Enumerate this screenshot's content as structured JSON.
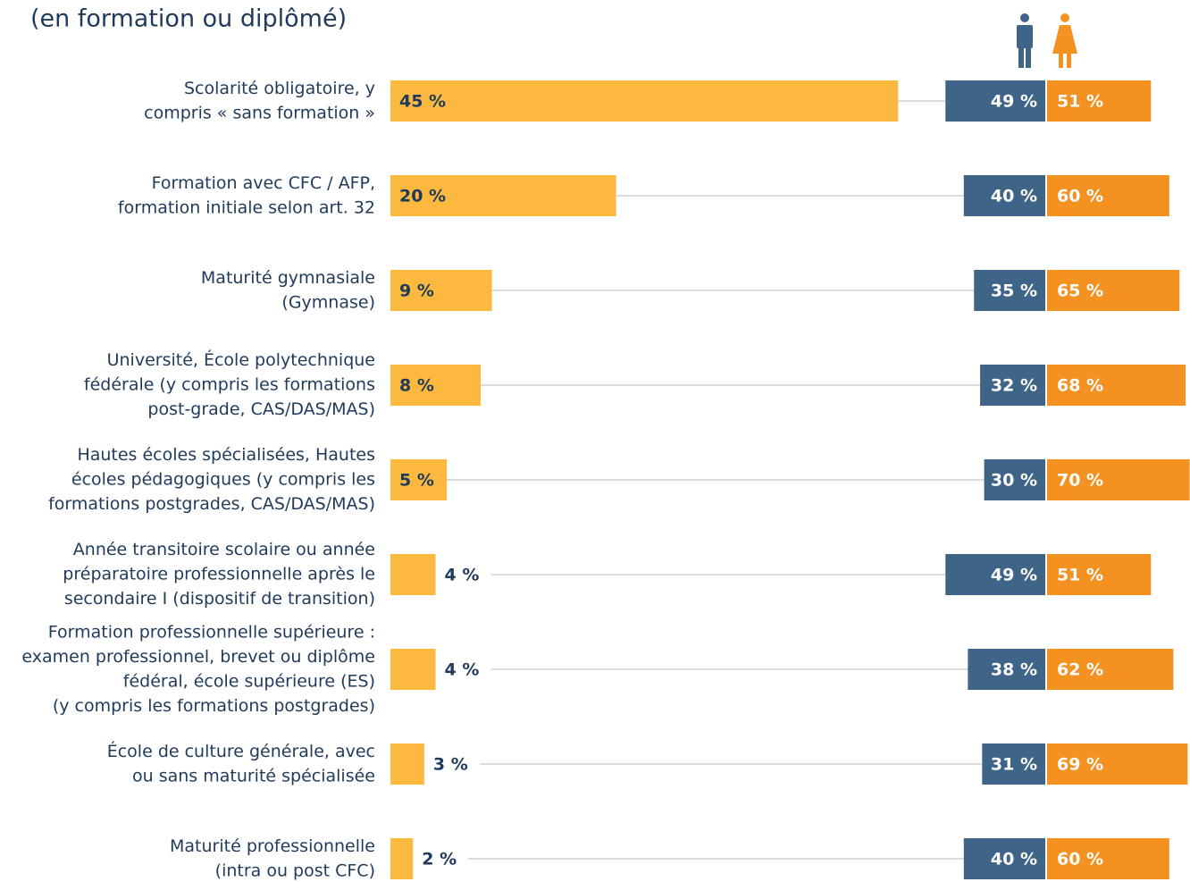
{
  "chart_data": {
    "type": "bar",
    "subtitle": "(en formation ou diplômé)",
    "categories": [
      [
        "Scolarité obligatoire, y",
        "compris « sans formation »"
      ],
      [
        "Formation avec CFC / AFP,",
        "formation initiale selon art. 32"
      ],
      [
        "Maturité gymnasiale",
        "(Gymnase)"
      ],
      [
        "Université, École polytechnique",
        "fédérale (y compris les formations",
        "post-grade, CAS/DAS/MAS)"
      ],
      [
        "Hautes écoles spécialisées, Hautes",
        "écoles pédagogiques (y compris les",
        "formations postgrades, CAS/DAS/MAS)"
      ],
      [
        "Année transitoire scolaire ou année",
        "préparatoire professionnelle après le",
        "secondaire I (dispositif de transition)"
      ],
      [
        "Formation professionnelle supérieure :",
        "examen professionnel, brevet ou diplôme",
        "fédéral, école supérieure (ES)",
        "(y compris les formations postgrades)"
      ],
      [
        "École de culture générale, avec",
        "ou sans maturité spécialisée"
      ],
      [
        "Maturité professionnelle",
        "(intra ou post CFC)"
      ]
    ],
    "values": [
      45,
      20,
      9,
      8,
      5,
      4,
      4,
      3,
      2
    ],
    "value_labels": [
      "45 %",
      "20 %",
      "9 %",
      "8 %",
      "5 %",
      "4 %",
      "4 %",
      "3 %",
      "2 %"
    ],
    "color": "#fdb840",
    "series": [
      {
        "color": "#3e6587",
        "values": [
          49,
          40,
          35,
          32,
          30,
          49,
          38,
          31,
          40
        ],
        "value_labels": [
          "49 %",
          "40 %",
          "35 %",
          "32 %",
          "30 %",
          "49 %",
          "38 %",
          "31 %",
          "40 %"
        ]
      },
      {
        "color": "#f39221",
        "values": [
          51,
          60,
          65,
          68,
          70,
          51,
          62,
          69,
          60
        ],
        "value_labels": [
          "51 %",
          "60 %",
          "65 %",
          "68 %",
          "70 %",
          "51 %",
          "62 %",
          "69 %",
          "60 %"
        ]
      }
    ]
  }
}
